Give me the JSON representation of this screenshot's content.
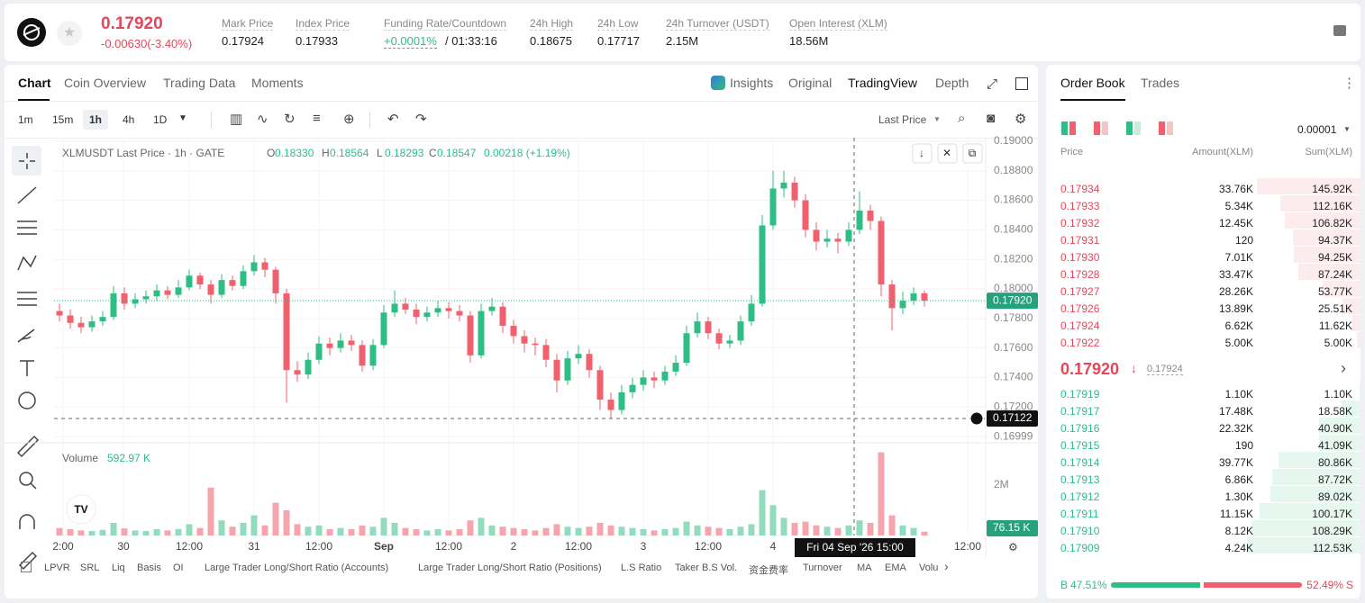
{
  "header": {
    "price": "0.17920",
    "change": "-0.00630(-3.40%)",
    "stats": [
      {
        "label": "Mark Price",
        "value": "0.17924"
      },
      {
        "label": "Index Price",
        "value": "0.17933"
      },
      {
        "label": "Funding Rate/Countdown",
        "value": "+0.0001%",
        "extra": "/ 01:33:16"
      },
      {
        "label": "24h High",
        "value": "0.18675"
      },
      {
        "label": "24h Low",
        "value": "0.17717"
      },
      {
        "label": "24h Turnover (USDT)",
        "value": "2.15M"
      },
      {
        "label": "Open Interest (XLM)",
        "value": "18.56M"
      }
    ]
  },
  "tabs": {
    "left": [
      "Chart",
      "Coin Overview",
      "Trading Data",
      "Moments"
    ],
    "right": [
      "Insights",
      "Original",
      "TradingView",
      "Depth"
    ]
  },
  "toolbar": {
    "intervals": [
      "1m",
      "15m",
      "1h",
      "4h",
      "1D"
    ],
    "price_source": "Last Price"
  },
  "chart_data": {
    "type": "candlestick",
    "title": "XLMUSDT Last Price · 1h · GATE",
    "ohlc_labels": [
      {
        "key": "O",
        "value": "0.18330"
      },
      {
        "key": "H",
        "value": "0.18564"
      },
      {
        "key": "L",
        "value": "0.18293"
      },
      {
        "key": "C",
        "value": "0.18547"
      }
    ],
    "change": "0.00218 (+1.19%)",
    "up_color": "#2ebd85",
    "down_color": "#f0616d",
    "grid": true,
    "ohlc": [
      [
        0.1785,
        0.179,
        0.1778,
        0.1782
      ],
      [
        0.1782,
        0.1786,
        0.1773,
        0.1777
      ],
      [
        0.1777,
        0.1781,
        0.177,
        0.1774
      ],
      [
        0.1774,
        0.1782,
        0.1771,
        0.1778
      ],
      [
        0.1778,
        0.1785,
        0.1775,
        0.1781
      ],
      [
        0.1781,
        0.1802,
        0.1779,
        0.1797
      ],
      [
        0.1797,
        0.1801,
        0.1786,
        0.179
      ],
      [
        0.179,
        0.1797,
        0.1787,
        0.1793
      ],
      [
        0.1793,
        0.1799,
        0.179,
        0.1795
      ],
      [
        0.1795,
        0.1803,
        0.1792,
        0.1799
      ],
      [
        0.1799,
        0.1802,
        0.1793,
        0.1796
      ],
      [
        0.1796,
        0.1806,
        0.1794,
        0.1801
      ],
      [
        0.1801,
        0.1813,
        0.1799,
        0.1809
      ],
      [
        0.1809,
        0.1811,
        0.18,
        0.1803
      ],
      [
        0.1803,
        0.1806,
        0.179,
        0.1796
      ],
      [
        0.1796,
        0.181,
        0.1794,
        0.1806
      ],
      [
        0.1806,
        0.1809,
        0.1799,
        0.1802
      ],
      [
        0.1802,
        0.1816,
        0.18,
        0.1812
      ],
      [
        0.1812,
        0.1823,
        0.1809,
        0.1818
      ],
      [
        0.1818,
        0.1821,
        0.1808,
        0.1813
      ],
      [
        0.1813,
        0.1815,
        0.179,
        0.1797
      ],
      [
        0.1797,
        0.18,
        0.1723,
        0.1745
      ],
      [
        0.1745,
        0.1751,
        0.1737,
        0.1742
      ],
      [
        0.1742,
        0.1757,
        0.1739,
        0.1752
      ],
      [
        0.1752,
        0.1768,
        0.1749,
        0.1763
      ],
      [
        0.1763,
        0.1767,
        0.1755,
        0.176
      ],
      [
        0.176,
        0.177,
        0.1757,
        0.1765
      ],
      [
        0.1765,
        0.1769,
        0.1758,
        0.1762
      ],
      [
        0.1762,
        0.1765,
        0.1744,
        0.1748
      ],
      [
        0.1748,
        0.1766,
        0.1745,
        0.1762
      ],
      [
        0.1762,
        0.1789,
        0.176,
        0.1784
      ],
      [
        0.1784,
        0.1799,
        0.1781,
        0.179
      ],
      [
        0.179,
        0.1794,
        0.1783,
        0.1786
      ],
      [
        0.1786,
        0.179,
        0.1776,
        0.1781
      ],
      [
        0.1781,
        0.1788,
        0.1778,
        0.1784
      ],
      [
        0.1784,
        0.1792,
        0.1781,
        0.1787
      ],
      [
        0.1787,
        0.1791,
        0.178,
        0.1785
      ],
      [
        0.1785,
        0.1789,
        0.1778,
        0.1782
      ],
      [
        0.1782,
        0.1785,
        0.175,
        0.1755
      ],
      [
        0.1755,
        0.179,
        0.1753,
        0.1785
      ],
      [
        0.1785,
        0.1794,
        0.1782,
        0.1788
      ],
      [
        0.1788,
        0.1791,
        0.177,
        0.1775
      ],
      [
        0.1775,
        0.1779,
        0.1763,
        0.1768
      ],
      [
        0.1768,
        0.1772,
        0.1757,
        0.1763
      ],
      [
        0.1763,
        0.1767,
        0.1755,
        0.1762
      ],
      [
        0.1762,
        0.1766,
        0.1747,
        0.1752
      ],
      [
        0.1752,
        0.1756,
        0.173,
        0.1738
      ],
      [
        0.1738,
        0.1758,
        0.1735,
        0.1753
      ],
      [
        0.1753,
        0.1762,
        0.1749,
        0.1756
      ],
      [
        0.1756,
        0.1759,
        0.174,
        0.1745
      ],
      [
        0.1745,
        0.1748,
        0.1718,
        0.1725
      ],
      [
        0.1725,
        0.173,
        0.1712,
        0.1718
      ],
      [
        0.1718,
        0.1735,
        0.1715,
        0.173
      ],
      [
        0.173,
        0.174,
        0.1726,
        0.1735
      ],
      [
        0.1735,
        0.1745,
        0.1731,
        0.174
      ],
      [
        0.174,
        0.1744,
        0.1733,
        0.1738
      ],
      [
        0.1738,
        0.1748,
        0.1735,
        0.1744
      ],
      [
        0.1744,
        0.1755,
        0.1741,
        0.175
      ],
      [
        0.175,
        0.1775,
        0.1748,
        0.177
      ],
      [
        0.177,
        0.1784,
        0.1767,
        0.1778
      ],
      [
        0.1778,
        0.1781,
        0.1766,
        0.177
      ],
      [
        0.177,
        0.1773,
        0.1759,
        0.1763
      ],
      [
        0.1763,
        0.1769,
        0.176,
        0.1765
      ],
      [
        0.1765,
        0.1782,
        0.1762,
        0.1778
      ],
      [
        0.1778,
        0.1796,
        0.1775,
        0.179
      ],
      [
        0.179,
        0.185,
        0.1788,
        0.1843
      ],
      [
        0.1843,
        0.188,
        0.184,
        0.1868
      ],
      [
        0.1868,
        0.188,
        0.1862,
        0.1872
      ],
      [
        0.1872,
        0.1876,
        0.1855,
        0.186
      ],
      [
        0.186,
        0.1864,
        0.1835,
        0.184
      ],
      [
        0.184,
        0.1845,
        0.1826,
        0.1832
      ],
      [
        0.1832,
        0.184,
        0.1828,
        0.1834
      ],
      [
        0.1834,
        0.1838,
        0.1824,
        0.1832
      ],
      [
        0.1832,
        0.1845,
        0.1829,
        0.184
      ],
      [
        0.184,
        0.1866,
        0.1837,
        0.1853
      ],
      [
        0.1853,
        0.1857,
        0.184,
        0.1846
      ],
      [
        0.1846,
        0.1849,
        0.1795,
        0.1803
      ],
      [
        0.1803,
        0.1806,
        0.1772,
        0.1787
      ],
      [
        0.1787,
        0.1798,
        0.1783,
        0.1792
      ],
      [
        0.1792,
        0.1801,
        0.1789,
        0.1797
      ],
      [
        0.1797,
        0.1799,
        0.1788,
        0.1792
      ]
    ],
    "ylim": [
      0.1697,
      0.19024
    ],
    "yticks": [
      {
        "value": 0.19,
        "label": "0.19000"
      },
      {
        "value": 0.188,
        "label": "0.18800"
      },
      {
        "value": 0.186,
        "label": "0.18600"
      },
      {
        "value": 0.184,
        "label": "0.18400"
      },
      {
        "value": 0.182,
        "label": "0.18200"
      },
      {
        "value": 0.18,
        "label": "0.18000"
      },
      {
        "value": 0.178,
        "label": "0.17800"
      },
      {
        "value": 0.176,
        "label": "0.17600"
      },
      {
        "value": 0.174,
        "label": "0.17400"
      },
      {
        "value": 0.172,
        "label": "0.17200"
      },
      0.16999
    ],
    "x_labels": [
      "2:00",
      "30",
      "12:00",
      "31",
      "12:00",
      "Sep",
      "12:00",
      "2",
      "12:00",
      "3",
      "12:00",
      "4",
      "12:00"
    ],
    "last_price": {
      "value": 0.1792,
      "label": "0.17920"
    },
    "crosshair": {
      "value": 0.17122,
      "label": "0.17122",
      "time": "Fri 04 Sep '26   15:00"
    },
    "volume": {
      "title": "Volume",
      "total": "592.97 K",
      "last": "76.15 K",
      "up_color": "#93dbbd",
      "down_color": "#f6a5ad",
      "ylim": [
        0,
        3570000
      ],
      "yticks": [
        {
          "value": 2000000,
          "label": "2M"
        }
      ],
      "values": [
        300000,
        250000,
        200000,
        180000,
        220000,
        500000,
        280000,
        200000,
        180000,
        250000,
        200000,
        260000,
        450000,
        300000,
        1900000,
        600000,
        350000,
        500000,
        800000,
        400000,
        1300000,
        1000000,
        450000,
        350000,
        400000,
        250000,
        300000,
        250000,
        400000,
        350000,
        700000,
        500000,
        300000,
        250000,
        200000,
        250000,
        200000,
        250000,
        600000,
        700000,
        400000,
        350000,
        300000,
        250000,
        200000,
        300000,
        450000,
        350000,
        300000,
        350000,
        500000,
        400000,
        350000,
        300000,
        250000,
        200000,
        250000,
        300000,
        550000,
        400000,
        350000,
        300000,
        250000,
        350000,
        450000,
        1800000,
        1200000,
        700000,
        500000,
        550000,
        400000,
        350000,
        300000,
        400000,
        600000,
        500000,
        3300000,
        800000,
        400000,
        300000,
        150000
      ]
    }
  },
  "indicators": [
    "LPVR",
    "SRL",
    "Liq",
    "Basis",
    "OI",
    "Large Trader Long/Short Ratio (Accounts)",
    "Large Trader Long/Short Ratio (Positions)",
    "L.S Ratio",
    "Taker B.S Vol.",
    "资金费率",
    "Turnover",
    "MA",
    "EMA",
    "Volu"
  ],
  "order_book": {
    "tabs": [
      "Order Book",
      "Trades"
    ],
    "precision": "0.00001",
    "columns": [
      "Price",
      "Amount(XLM)",
      "Sum(XLM)"
    ],
    "asks": [
      {
        "price": "0.17934",
        "amount": "33.76K",
        "sum": {
          "value": 145920,
          "label": "145.92K"
        }
      },
      {
        "price": "0.17933",
        "amount": "5.34K",
        "sum": {
          "value": 112160,
          "label": "112.16K"
        }
      },
      {
        "price": "0.17932",
        "amount": "12.45K",
        "sum": {
          "value": 106820,
          "label": "106.82K"
        }
      },
      {
        "price": "0.17931",
        "amount": "120",
        "sum": {
          "value": 94370,
          "label": "94.37K"
        }
      },
      {
        "price": "0.17930",
        "amount": "7.01K",
        "sum": {
          "value": 94250,
          "label": "94.25K"
        }
      },
      {
        "price": "0.17928",
        "amount": "33.47K",
        "sum": {
          "value": 87240,
          "label": "87.24K"
        }
      },
      {
        "price": "0.17927",
        "amount": "28.26K",
        "sum": {
          "value": 53770,
          "label": "53.77K"
        }
      },
      {
        "price": "0.17926",
        "amount": "13.89K",
        "sum": {
          "value": 25510,
          "label": "25.51K"
        }
      },
      {
        "price": "0.17924",
        "amount": "6.62K",
        "sum": {
          "value": 11620,
          "label": "11.62K"
        }
      },
      {
        "price": "0.17922",
        "amount": "5.00K",
        "sum": {
          "value": 5000,
          "label": "5.00K"
        }
      }
    ],
    "mid_price": "0.17920",
    "mark_price": "0.17924",
    "bids": [
      {
        "price": "0.17919",
        "amount": "1.10K",
        "sum": {
          "value": 1100,
          "label": "1.10K"
        }
      },
      {
        "price": "0.17917",
        "amount": "17.48K",
        "sum": {
          "value": 18580,
          "label": "18.58K"
        }
      },
      {
        "price": "0.17916",
        "amount": "22.32K",
        "sum": {
          "value": 40900,
          "label": "40.90K"
        }
      },
      {
        "price": "0.17915",
        "amount": "190",
        "sum": {
          "value": 41090,
          "label": "41.09K"
        }
      },
      {
        "price": "0.17914",
        "amount": "39.77K",
        "sum": {
          "value": 80860,
          "label": "80.86K"
        }
      },
      {
        "price": "0.17913",
        "amount": "6.86K",
        "sum": {
          "value": 87720,
          "label": "87.72K"
        }
      },
      {
        "price": "0.17912",
        "amount": "1.30K",
        "sum": {
          "value": 89020,
          "label": "89.02K"
        }
      },
      {
        "price": "0.17911",
        "amount": "11.15K",
        "sum": {
          "value": 100170,
          "label": "100.17K"
        }
      },
      {
        "price": "0.17910",
        "amount": "8.12K",
        "sum": {
          "value": 108290,
          "label": "108.29K"
        }
      },
      {
        "price": "0.17909",
        "amount": "4.24K",
        "sum": {
          "value": 112530,
          "label": "112.53K"
        }
      }
    ],
    "buy_ratio": {
      "value": 47.51,
      "label": "47.51%"
    },
    "sell_ratio": {
      "value": 52.49,
      "label": "52.49%"
    },
    "buy_key": "B",
    "sell_key": "S"
  }
}
